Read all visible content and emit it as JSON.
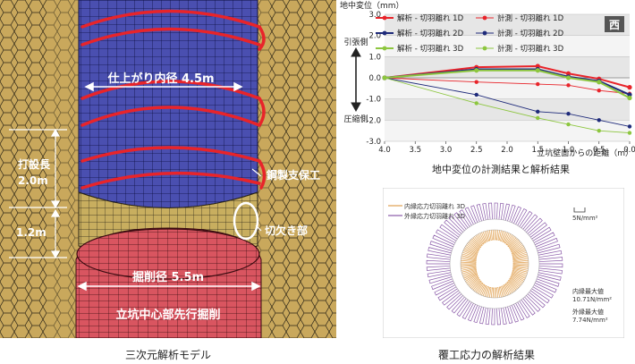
{
  "model": {
    "caption": "三次元解析モデル",
    "labels": {
      "inner_diameter": "仕上がり内径 4.5m",
      "steel_support": "鋼製支保工",
      "notch": "切欠き部",
      "excavation_diameter": "掘削径 5.5m",
      "center_pre_excavation": "立坑中心部先行掘削",
      "cast_length_label": "打設長",
      "cast_length_value": "2.0m",
      "offset_value": "1.2m"
    },
    "colors": {
      "ground": "#c9a85c",
      "shaft": "#4a4fb0",
      "lining": "#c8ae5f",
      "core": "#d95560",
      "support": "#e8242a"
    }
  },
  "chart_data": {
    "type": "line",
    "title": "地中変位の計測結果と解析結果",
    "ylabel": "地中変位（mm）",
    "xlabel": "立坑壁面からの距離（m）",
    "x_ticks": [
      "4.0",
      "3.5",
      "3.0",
      "2.5",
      "2.0",
      "1.5",
      "1.0",
      "0.5",
      "0.0"
    ],
    "y_ticks": [
      "3.0",
      "2.0",
      "1.0",
      "0.0",
      "-1.0",
      "-2.0",
      "-3.0"
    ],
    "xlim": [
      4.0,
      0.0
    ],
    "ylim": [
      -3.0,
      3.0
    ],
    "tension_label": "引張側",
    "compression_label": "圧縮側",
    "direction_badge": "西",
    "series": [
      {
        "name": "解析 - 切羽離れ 1D",
        "style": "analysis",
        "color": "#e8242a",
        "x": [
          4.0,
          2.5,
          1.5,
          1.0,
          0.5,
          0.0
        ],
        "y": [
          0.0,
          0.5,
          0.55,
          0.2,
          -0.05,
          -0.45
        ]
      },
      {
        "name": "計測 - 切羽離れ 1D",
        "style": "measure",
        "color": "#e8242a",
        "x": [
          4.0,
          2.5,
          1.5,
          1.0,
          0.5,
          0.0
        ],
        "y": [
          0.0,
          -0.2,
          -0.3,
          -0.35,
          -0.6,
          -0.75
        ]
      },
      {
        "name": "解析 - 切羽離れ 2D",
        "style": "analysis",
        "color": "#1e2a7a",
        "x": [
          4.0,
          2.5,
          1.5,
          1.0,
          0.5,
          0.0
        ],
        "y": [
          0.0,
          0.4,
          0.4,
          0.05,
          -0.15,
          -0.8
        ]
      },
      {
        "name": "計測 - 切羽離れ 2D",
        "style": "measure",
        "color": "#1e2a7a",
        "x": [
          4.0,
          2.5,
          1.5,
          1.0,
          0.5,
          0.0
        ],
        "y": [
          0.0,
          -0.8,
          -1.6,
          -1.7,
          -2.0,
          -2.3
        ]
      },
      {
        "name": "解析 - 切羽離れ 3D",
        "style": "analysis",
        "color": "#8dc63f",
        "x": [
          4.0,
          2.5,
          1.5,
          1.0,
          0.5,
          0.0
        ],
        "y": [
          0.0,
          0.35,
          0.35,
          0.0,
          -0.2,
          -0.95
        ]
      },
      {
        "name": "計測 - 切羽離れ 3D",
        "style": "measure",
        "color": "#8dc63f",
        "x": [
          4.0,
          2.5,
          1.5,
          1.0,
          0.5,
          0.0
        ],
        "y": [
          0.0,
          -1.2,
          -1.9,
          -2.2,
          -2.5,
          -2.6
        ]
      }
    ]
  },
  "ring": {
    "caption": "覆工応力の解析結果",
    "legend": [
      {
        "label": "内縁応力切羽離れ 3D",
        "color": "#e0a050"
      },
      {
        "label": "外縁応力切羽離れ 3D",
        "color": "#8a5aa8"
      }
    ],
    "scale_label": "5N/mm²",
    "inner_max_label": "内縁最大値",
    "inner_max_value": "10.71N/mm²",
    "outer_max_label": "外縁最大値",
    "outer_max_value": "7.74N/mm²"
  }
}
